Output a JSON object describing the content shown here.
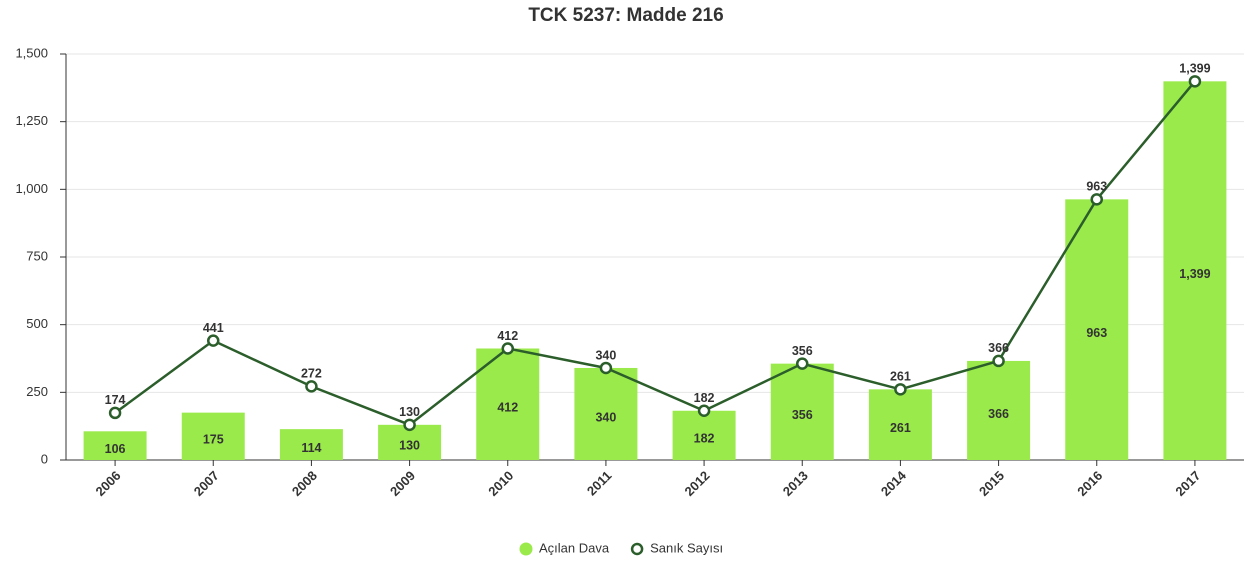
{
  "chart_data": {
    "type": "bar",
    "title": "TCK 5237: Madde 216",
    "categories": [
      "2006",
      "2007",
      "2008",
      "2009",
      "2010",
      "2011",
      "2012",
      "2013",
      "2014",
      "2015",
      "2016",
      "2017"
    ],
    "series": [
      {
        "name": "Açılan Dava",
        "type": "bar",
        "color": "#9bea4c",
        "values": [
          106,
          175,
          114,
          130,
          412,
          340,
          182,
          356,
          261,
          366,
          963,
          1399
        ],
        "value_labels": [
          "106",
          "175",
          "114",
          "130",
          "412",
          "340",
          "182",
          "356",
          "261",
          "366",
          "963",
          "1,399"
        ]
      },
      {
        "name": "Sanık Sayısı",
        "type": "line",
        "color": "#2b5e2b",
        "values": [
          174,
          441,
          272,
          130,
          412,
          340,
          182,
          356,
          261,
          366,
          963,
          1399
        ],
        "value_labels": [
          "174",
          "441",
          "272",
          "130",
          "412",
          "340",
          "182",
          "356",
          "261",
          "366",
          "963",
          "1,399"
        ]
      }
    ],
    "ylim": [
      0,
      1500
    ],
    "yticks": [
      0,
      250,
      500,
      750,
      {
        "value": 1000,
        "label": "1,000"
      },
      {
        "value": 1250,
        "label": "1,250"
      },
      {
        "value": 1500,
        "label": "1,500"
      }
    ],
    "grid": true,
    "legend": "bottom"
  }
}
